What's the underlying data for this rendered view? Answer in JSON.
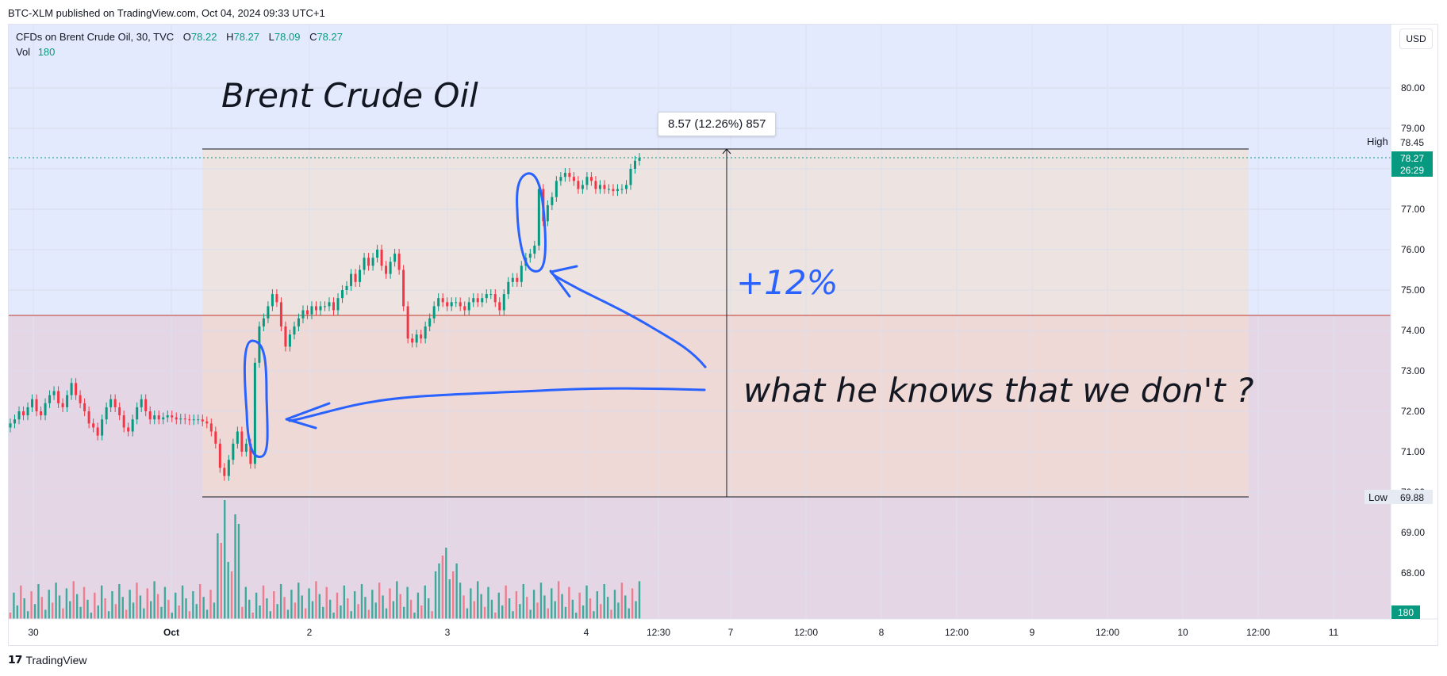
{
  "published": "BTC-XLM published on TradingView.com, Oct 04, 2024 09:33 UTC+1",
  "legend": {
    "symbol": "CFDs on Brent Crude Oil, 30, TVC",
    "o_label": "O",
    "o_value": "78.22",
    "h_label": "H",
    "h_value": "78.27",
    "l_label": "L",
    "l_value": "78.09",
    "c_label": "C",
    "c_value": "78.27",
    "vol_label": "Vol",
    "vol_value": "180"
  },
  "currency_button": "USD",
  "annotations": {
    "title": "Brent Crude Oil",
    "percent": "+12%",
    "question": "what he knows that we don't ?",
    "measure": "8.57 (12.26%) 857"
  },
  "price_labels": {
    "high_tag": "High",
    "high_value": "78.45",
    "current_price": "78.27",
    "countdown": "26:29",
    "low_tag": "Low",
    "low_value": "69.88",
    "volume_value": "180"
  },
  "footer": {
    "logo_mark": "𝟭𝟳",
    "logo_text": "TradingView"
  },
  "colors": {
    "up": "#089981",
    "down": "#f23645",
    "accent": "#2962ff",
    "upper_zone": "#e3eafd",
    "lower_zone": "#e5d6e6",
    "range_box": "#f5dcc9"
  },
  "chart_data": {
    "type": "candlestick",
    "title": "CFDs on Brent Crude Oil, 30, TVC",
    "ylim": [
      67.4,
      81.0
    ],
    "y_ticks": [
      68.0,
      69.0,
      70.0,
      71.0,
      72.0,
      73.0,
      74.0,
      75.0,
      76.0,
      77.0,
      78.0,
      79.0,
      80.0
    ],
    "x_ticks": [
      "30",
      "Oct",
      "2",
      "3",
      "4",
      "12:30",
      "7",
      "12:00",
      "8",
      "12:00",
      "9",
      "12:00",
      "10",
      "12:00",
      "11"
    ],
    "horizontal_line": 74.35,
    "price_range": {
      "low": 69.88,
      "high": 78.45,
      "change": 8.57,
      "change_pct": 12.26,
      "bars": 857
    },
    "candles_close": [
      71.7,
      71.8,
      72.0,
      71.9,
      72.1,
      72.3,
      72.0,
      71.9,
      72.2,
      72.4,
      72.5,
      72.2,
      72.1,
      72.4,
      72.7,
      72.4,
      72.2,
      72.0,
      71.7,
      71.6,
      71.4,
      71.8,
      72.1,
      72.3,
      72.1,
      71.9,
      71.6,
      71.5,
      71.8,
      72.1,
      72.3,
      72.0,
      71.8,
      71.9,
      71.8,
      71.85,
      71.9,
      71.85,
      71.8,
      71.82,
      71.8,
      71.78,
      71.8,
      71.8,
      71.75,
      71.7,
      71.5,
      71.2,
      70.6,
      70.4,
      70.8,
      71.2,
      71.5,
      71.0,
      71.2,
      70.7,
      73.2,
      74.1,
      74.3,
      74.6,
      74.9,
      74.7,
      74.1,
      73.6,
      73.9,
      74.1,
      74.3,
      74.5,
      74.4,
      74.6,
      74.5,
      74.6,
      74.6,
      74.7,
      74.5,
      74.8,
      75.0,
      75.1,
      75.4,
      75.2,
      75.5,
      75.8,
      75.6,
      75.8,
      76.0,
      75.6,
      75.4,
      75.7,
      75.9,
      75.5,
      74.6,
      73.8,
      73.7,
      73.9,
      73.8,
      74.1,
      74.3,
      74.6,
      74.8,
      74.7,
      74.6,
      74.7,
      74.7,
      74.6,
      74.5,
      74.7,
      74.8,
      74.7,
      74.8,
      74.9,
      74.9,
      74.7,
      74.5,
      74.9,
      75.2,
      75.3,
      75.2,
      75.6,
      75.8,
      75.9,
      76.1,
      77.5,
      76.7,
      77.1,
      77.3,
      77.7,
      77.8,
      77.9,
      77.8,
      77.7,
      77.5,
      77.6,
      77.8,
      77.7,
      77.5,
      77.6,
      77.5,
      77.5,
      77.45,
      77.5,
      77.5,
      77.6,
      78.0,
      78.2,
      78.27
    ],
    "volume_series_count": 180
  }
}
